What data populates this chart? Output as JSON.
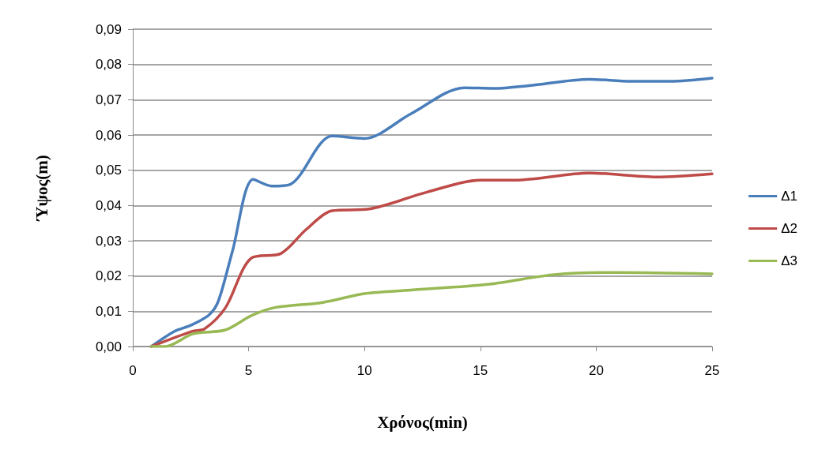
{
  "chart_data": {
    "type": "line",
    "xlabel": "Χρόνος(min)",
    "ylabel": "Ύψος(m)",
    "xlim": [
      0,
      25
    ],
    "xticks": [
      0,
      5,
      10,
      15,
      20,
      25
    ],
    "ylim": [
      0,
      0.09
    ],
    "yticks": [
      {
        "value": 0,
        "label": "0,00"
      },
      {
        "value": 0.01,
        "label": "0,01"
      },
      {
        "value": 0.02,
        "label": "0,02"
      },
      {
        "value": 0.03,
        "label": "0,03"
      },
      {
        "value": 0.04,
        "label": "0,04"
      },
      {
        "value": 0.05,
        "label": "0,05"
      },
      {
        "value": 0.06,
        "label": "0,06"
      },
      {
        "value": 0.07,
        "label": "0,07"
      },
      {
        "value": 0.08,
        "label": "0,08"
      },
      {
        "value": 0.09,
        "label": "0,09"
      }
    ],
    "grid": "y",
    "legend": "right",
    "marker": "none",
    "line_style": "solid",
    "series": [
      {
        "name": "Δ1",
        "color": "#4a7ebb",
        "x": [
          0.8,
          1.8,
          2.5,
          3.3,
          3.7,
          4.3,
          5.2,
          6,
          6.8,
          8.6,
          10,
          12,
          14.3,
          15.6,
          17.1,
          19.7,
          21.5,
          23.2,
          25
        ],
        "values": [
          0,
          0.0043,
          0.006,
          0.009,
          0.013,
          0.027,
          0.0474,
          0.0455,
          0.046,
          0.0597,
          0.059,
          0.066,
          0.0734,
          0.0732,
          0.074,
          0.0758,
          0.0752,
          0.0752,
          0.0761
        ]
      },
      {
        "name": "Δ2",
        "color": "#be4b48",
        "x": [
          0.8,
          2.55,
          3.1,
          4,
          5.1,
          6.4,
          7.5,
          8.6,
          10.2,
          12.7,
          15,
          16.5,
          19.7,
          22.6,
          25
        ],
        "values": [
          0,
          0.0043,
          0.005,
          0.011,
          0.025,
          0.0264,
          0.0333,
          0.0385,
          0.039,
          0.0438,
          0.0472,
          0.0472,
          0.0492,
          0.0481,
          0.049
        ]
      },
      {
        "name": "Δ3",
        "color": "#98b954",
        "x": [
          0.8,
          1.4,
          2.6,
          4,
          5.1,
          6.1,
          8.2,
          10,
          12,
          15.4,
          18.2,
          20.9,
          25
        ],
        "values": [
          0,
          0,
          0.0036,
          0.0047,
          0.0087,
          0.011,
          0.0125,
          0.015,
          0.016,
          0.0177,
          0.0204,
          0.021,
          0.0206
        ]
      }
    ]
  }
}
